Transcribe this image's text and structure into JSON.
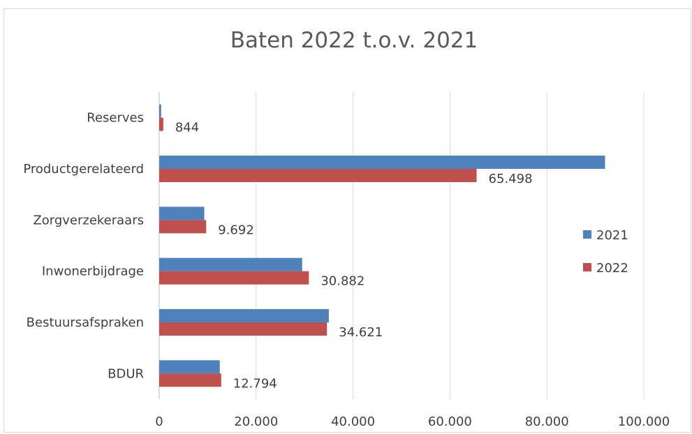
{
  "chart_data": {
    "type": "bar",
    "orientation": "horizontal",
    "title": "Baten 2022 t.o.v. 2021",
    "categories": [
      "Reserves",
      "Productgerelateerd",
      "Zorgverzekeraars",
      "Inwonerbijdrage",
      "Bestuursafspraken",
      "BDUR"
    ],
    "series": [
      {
        "name": "2021",
        "color": "#4f81bd",
        "values": [
          400,
          92000,
          9300,
          29500,
          35000,
          12500
        ]
      },
      {
        "name": "2022",
        "color": "#c0504d",
        "values": [
          844,
          65498,
          9692,
          30882,
          34621,
          12794
        ],
        "labels": [
          "844",
          "65.498",
          "9.692",
          "30.882",
          "34.621",
          "12.794"
        ]
      }
    ],
    "xlim": [
      0,
      100000
    ],
    "xticks": [
      0,
      20000,
      40000,
      60000,
      80000,
      100000
    ],
    "xtick_labels": [
      "0",
      "20.000",
      "40.000",
      "60.000",
      "80.000",
      "100.000"
    ],
    "grid": "vertical",
    "legend_position": "right"
  }
}
